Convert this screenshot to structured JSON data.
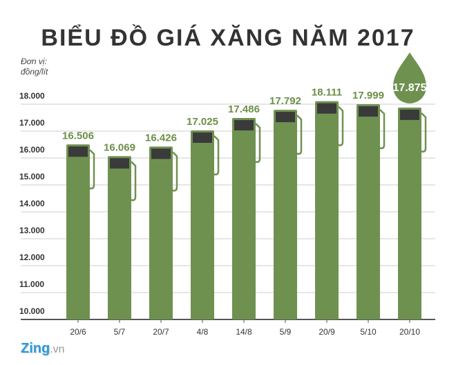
{
  "chart_data": {
    "type": "bar",
    "title": "BIỂU ĐỒ GIÁ XĂNG NĂM 2017",
    "ylabel": "Đơn vị: đồng/lít",
    "unit_line1": "Đơn vị:",
    "unit_line2": "đồng/lít",
    "categories": [
      "20/6",
      "5/7",
      "20/7",
      "4/8",
      "14/8",
      "5/9",
      "20/9",
      "5/10",
      "20/10"
    ],
    "values": [
      16506,
      16069,
      16426,
      17025,
      17486,
      17792,
      18111,
      17999,
      17875
    ],
    "value_labels": [
      "16.506",
      "16.069",
      "16.426",
      "17.025",
      "17.486",
      "17.792",
      "18.111",
      "17.999",
      "17.875"
    ],
    "highlighted_index": 8,
    "yticks": [
      10000,
      11000,
      12000,
      13000,
      14000,
      15000,
      16000,
      17000,
      18000
    ],
    "ytick_labels": [
      "10.000",
      "11.000",
      "12.000",
      "13.000",
      "14.000",
      "15.000",
      "16.000",
      "17.000",
      "18.000"
    ],
    "ylim": [
      10000,
      18000
    ],
    "grid": true,
    "bar_shape": "fuel-pump",
    "colors": {
      "bar": "#6f9150",
      "screen": "#3a3a3a",
      "text": "#333333",
      "grid": "#cccccc"
    }
  },
  "footer": {
    "logo": "Zing",
    "logo_suffix": ".vn"
  }
}
